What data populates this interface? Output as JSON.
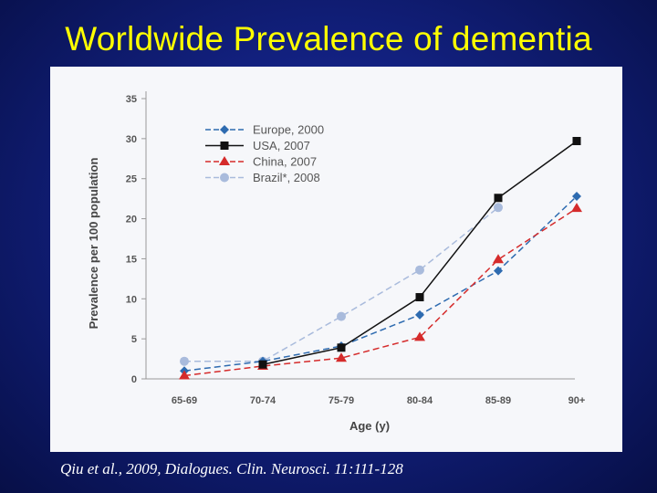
{
  "slide": {
    "title": "Worldwide Prevalence of dementia",
    "citation": "Qiu et al., 2009, Dialogues. Clin. Neurosci. 11:111-128"
  },
  "chart_data": {
    "type": "line",
    "title": "",
    "xlabel": "Age (y)",
    "ylabel": "Prevalence per 100 population",
    "categories": [
      "65-69",
      "70-74",
      "75-79",
      "80-84",
      "85-89",
      "90+"
    ],
    "ylim": [
      0,
      35
    ],
    "yticks": [
      0,
      5,
      10,
      15,
      20,
      25,
      30,
      35
    ],
    "legend_position": "top-left",
    "series": [
      {
        "name": "Europe, 2000",
        "color": "#2e6bb0",
        "marker": "diamond",
        "dash": "dashed",
        "values": [
          1.0,
          2.2,
          4.1,
          8.0,
          13.5,
          22.8
        ]
      },
      {
        "name": "USA, 2007",
        "color": "#111111",
        "marker": "square",
        "dash": "solid",
        "values": [
          null,
          1.8,
          3.9,
          10.2,
          22.6,
          29.7
        ]
      },
      {
        "name": "China, 2007",
        "color": "#d52b2b",
        "marker": "triangle",
        "dash": "dashed",
        "values": [
          0.4,
          1.6,
          2.6,
          5.2,
          14.9,
          21.3
        ]
      },
      {
        "name": "Brazil*, 2008",
        "color": "#a9bbdc",
        "marker": "circle",
        "dash": "dashed",
        "values": [
          2.2,
          2.2,
          7.8,
          13.6,
          21.4,
          null
        ]
      }
    ]
  }
}
